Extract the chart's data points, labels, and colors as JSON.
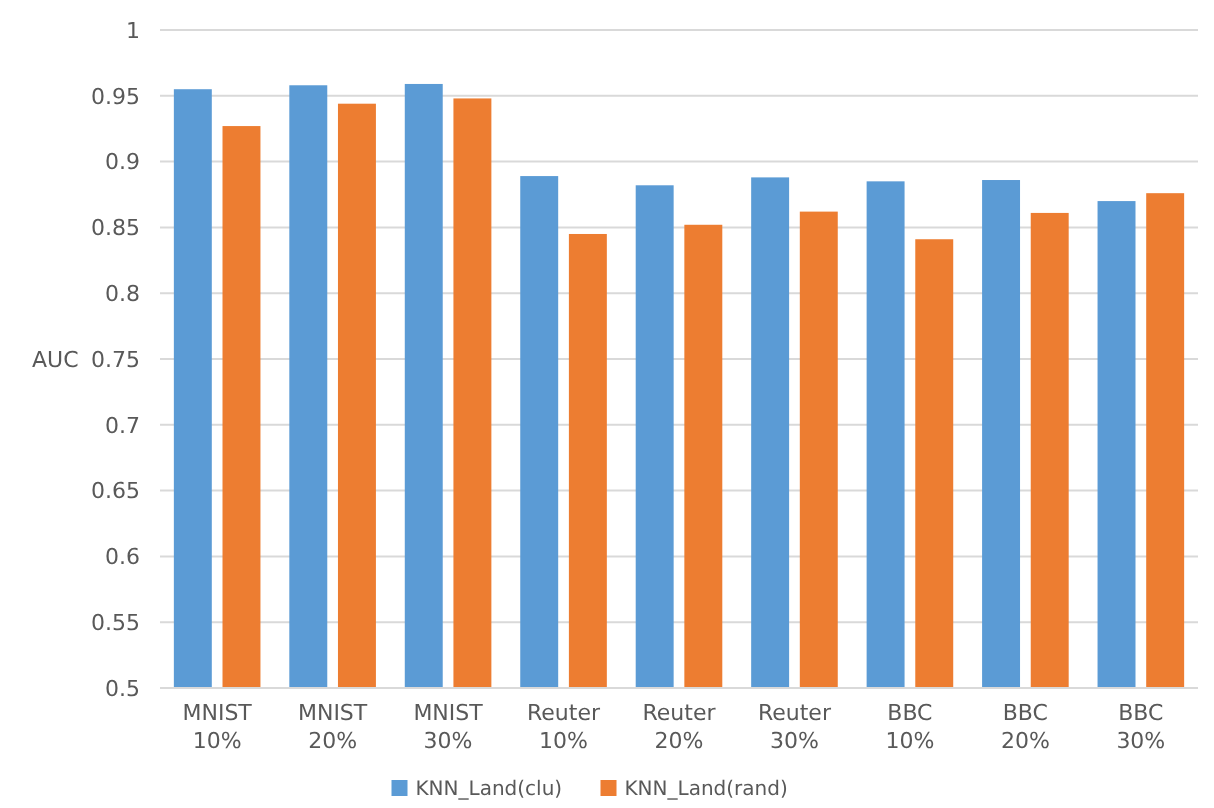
{
  "chart_data": {
    "type": "bar",
    "ylabel": "AUC",
    "categories": [
      "MNIST 10%",
      "MNIST 20%",
      "MNIST 30%",
      "Reuter 10%",
      "Reuter 20%",
      "Reuter 30%",
      "BBC 10%",
      "BBC 20%",
      "BBC 30%"
    ],
    "series": [
      {
        "name": "KNN_Land(clu)",
        "color": "#5b9bd5",
        "values": [
          0.955,
          0.958,
          0.959,
          0.889,
          0.882,
          0.888,
          0.885,
          0.886,
          0.87
        ]
      },
      {
        "name": "KNN_Land(rand)",
        "color": "#ed7d31",
        "values": [
          0.927,
          0.944,
          0.948,
          0.845,
          0.852,
          0.862,
          0.841,
          0.861,
          0.876
        ]
      }
    ],
    "ylim": [
      0.5,
      1
    ],
    "yticks": [
      0.5,
      0.55,
      0.6,
      0.65,
      0.7,
      0.75,
      0.8,
      0.85,
      0.9,
      0.95,
      1
    ],
    "grid": "y",
    "legend": "bottom"
  }
}
